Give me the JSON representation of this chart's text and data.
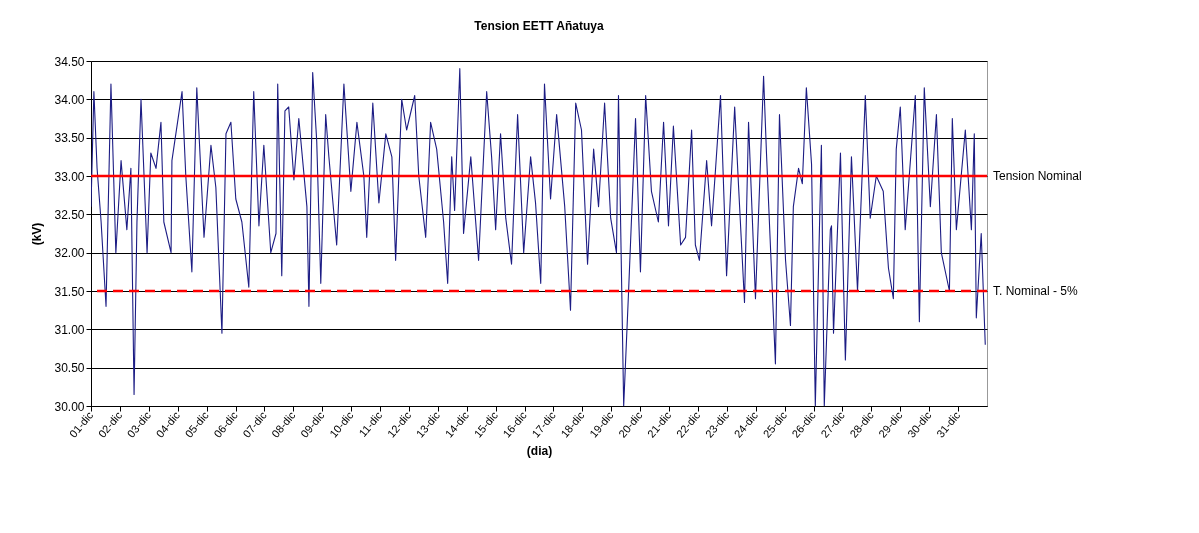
{
  "chart_data": {
    "type": "line",
    "title": "Tension EETT Añatuya",
    "xlabel": "(dia)",
    "ylabel": "(kV)",
    "x": [
      1.0,
      1.1,
      1.21,
      1.35,
      1.52,
      1.69,
      1.86,
      2.04,
      2.24,
      2.38,
      2.49,
      2.59,
      2.73,
      2.94,
      3.07,
      3.25,
      3.42,
      3.52,
      3.77,
      3.8,
      4.15,
      4.28,
      4.49,
      4.66,
      4.91,
      5.15,
      5.32,
      5.53,
      5.67,
      5.84,
      6.01,
      6.22,
      6.46,
      6.63,
      6.81,
      6.98,
      7.22,
      7.4,
      7.46,
      7.6,
      7.71,
      7.84,
      8.02,
      8.19,
      8.47,
      8.54,
      8.67,
      8.81,
      8.95,
      9.12,
      9.23,
      9.5,
      9.75,
      9.99,
      10.2,
      10.44,
      10.54,
      10.75,
      10.96,
      11.2,
      11.41,
      11.54,
      11.75,
      11.92,
      12.2,
      12.34,
      12.58,
      12.75,
      12.96,
      13.2,
      13.34,
      13.48,
      13.58,
      13.76,
      13.89,
      14.14,
      14.41,
      14.69,
      14.86,
      15.0,
      15.17,
      15.35,
      15.55,
      15.76,
      15.97,
      16.21,
      16.38,
      16.56,
      16.69,
      16.9,
      17.11,
      17.39,
      17.59,
      17.77,
      17.97,
      18.18,
      18.39,
      18.56,
      18.77,
      18.98,
      19.18,
      19.25,
      19.43,
      19.6,
      19.84,
      20.01,
      20.19,
      20.39,
      20.63,
      20.81,
      20.98,
      21.15,
      21.4,
      21.57,
      21.78,
      21.91,
      22.05,
      22.3,
      22.47,
      22.61,
      22.78,
      22.99,
      23.27,
      23.4,
      23.61,
      23.75,
      23.99,
      24.27,
      24.37,
      24.68,
      24.82,
      25.03,
      25.2,
      25.3,
      25.48,
      25.61,
      25.75,
      25.93,
      26.06,
      26.27,
      26.37,
      26.58,
      26.62,
      26.69,
      26.93,
      27.1,
      27.31,
      27.52,
      27.79,
      27.96,
      28.17,
      28.41,
      28.59,
      28.76,
      28.86,
      29.0,
      29.17,
      29.52,
      29.66,
      29.83,
      30.04,
      30.25,
      30.42,
      30.7,
      30.8,
      30.94,
      31.25,
      31.46,
      31.56,
      31.63,
      31.8,
      31.94
    ],
    "series": [
      {
        "color": "#1c1c84",
        "values": [
          32.6,
          34.1,
          33.1,
          32.4,
          31.3,
          34.2,
          32.0,
          33.2,
          32.3,
          33.1,
          30.15,
          32.4,
          34.0,
          32.0,
          33.3,
          33.1,
          33.7,
          32.4,
          32.0,
          33.2,
          34.1,
          33.0,
          31.75,
          34.15,
          32.2,
          33.4,
          32.85,
          30.95,
          33.55,
          33.7,
          32.7,
          32.4,
          31.55,
          34.1,
          32.35,
          33.4,
          32.0,
          32.25,
          34.2,
          31.7,
          33.85,
          33.9,
          32.95,
          33.75,
          32.6,
          31.3,
          34.35,
          33.45,
          31.6,
          33.8,
          33.25,
          32.1,
          34.2,
          32.8,
          33.7,
          33.0,
          32.2,
          33.95,
          32.65,
          33.55,
          33.25,
          31.9,
          34.0,
          33.6,
          34.05,
          33.0,
          32.2,
          33.7,
          33.35,
          32.4,
          31.6,
          33.25,
          32.55,
          34.4,
          32.25,
          33.25,
          31.9,
          34.1,
          33.25,
          32.3,
          33.55,
          32.45,
          31.85,
          33.8,
          32.0,
          33.25,
          32.65,
          31.6,
          34.2,
          32.7,
          33.8,
          32.6,
          31.25,
          33.95,
          33.6,
          31.85,
          33.35,
          32.6,
          33.95,
          32.45,
          32.0,
          34.05,
          30.0,
          31.5,
          33.75,
          31.75,
          34.05,
          32.8,
          32.4,
          33.7,
          32.35,
          33.65,
          32.1,
          32.2,
          33.6,
          32.1,
          31.9,
          33.2,
          32.35,
          33.1,
          34.05,
          31.7,
          33.9,
          32.9,
          31.35,
          33.7,
          31.4,
          34.3,
          33.3,
          30.55,
          33.8,
          31.9,
          31.05,
          32.6,
          33.1,
          32.9,
          34.15,
          33.15,
          30.0,
          33.4,
          30.0,
          32.3,
          32.35,
          30.95,
          33.3,
          30.6,
          33.25,
          31.5,
          34.05,
          32.45,
          33.0,
          32.8,
          31.8,
          31.4,
          33.35,
          33.9,
          32.3,
          34.05,
          31.1,
          34.15,
          32.6,
          33.8,
          32.0,
          31.5,
          33.75,
          32.3,
          33.6,
          32.3,
          33.55,
          31.15,
          32.25,
          30.8
        ]
      }
    ],
    "xlim": [
      1,
      32
    ],
    "xticks": [
      {
        "value": 1,
        "label": "01-dic"
      },
      {
        "value": 2,
        "label": "02-dic"
      },
      {
        "value": 3,
        "label": "03-dic"
      },
      {
        "value": 4,
        "label": "04-dic"
      },
      {
        "value": 5,
        "label": "05-dic"
      },
      {
        "value": 6,
        "label": "06-dic"
      },
      {
        "value": 7,
        "label": "07-dic"
      },
      {
        "value": 8,
        "label": "08-dic"
      },
      {
        "value": 9,
        "label": "09-dic"
      },
      {
        "value": 10,
        "label": "10-dic"
      },
      {
        "value": 11,
        "label": "11-dic"
      },
      {
        "value": 12,
        "label": "12-dic"
      },
      {
        "value": 13,
        "label": "13-dic"
      },
      {
        "value": 14,
        "label": "14-dic"
      },
      {
        "value": 15,
        "label": "15-dic"
      },
      {
        "value": 16,
        "label": "16-dic"
      },
      {
        "value": 17,
        "label": "17-dic"
      },
      {
        "value": 18,
        "label": "18-dic"
      },
      {
        "value": 19,
        "label": "19-dic"
      },
      {
        "value": 20,
        "label": "20-dic"
      },
      {
        "value": 21,
        "label": "21-dic"
      },
      {
        "value": 22,
        "label": "22-dic"
      },
      {
        "value": 23,
        "label": "23-dic"
      },
      {
        "value": 24,
        "label": "24-dic"
      },
      {
        "value": 25,
        "label": "25-dic"
      },
      {
        "value": 26,
        "label": "26-dic"
      },
      {
        "value": 27,
        "label": "27-dic"
      },
      {
        "value": 28,
        "label": "28-dic"
      },
      {
        "value": 29,
        "label": "29-dic"
      },
      {
        "value": 30,
        "label": "30-dic"
      },
      {
        "value": 31,
        "label": "31-dic"
      }
    ],
    "ylim": [
      30,
      34.5
    ],
    "yticks": [
      {
        "value": 30,
        "label": "30.00"
      },
      {
        "value": 30.5,
        "label": "30.50"
      },
      {
        "value": 31,
        "label": "31.00"
      },
      {
        "value": 31.5,
        "label": "31.50"
      },
      {
        "value": 32,
        "label": "32.00"
      },
      {
        "value": 32.5,
        "label": "32.50"
      },
      {
        "value": 33,
        "label": "33.00"
      },
      {
        "value": 33.5,
        "label": "33.50"
      },
      {
        "value": 34,
        "label": "34.00"
      },
      {
        "value": 34.5,
        "label": "34.50"
      }
    ],
    "grid": "y",
    "ref_lines": [
      {
        "axis": "y",
        "value": 33,
        "label": "Tension Nominal",
        "color": "#ff0000",
        "line_style": "solid"
      },
      {
        "axis": "y",
        "value": 31.5,
        "label": "T. Nominal - 5%",
        "color": "#ff0000",
        "line_style": "dashed"
      }
    ]
  }
}
